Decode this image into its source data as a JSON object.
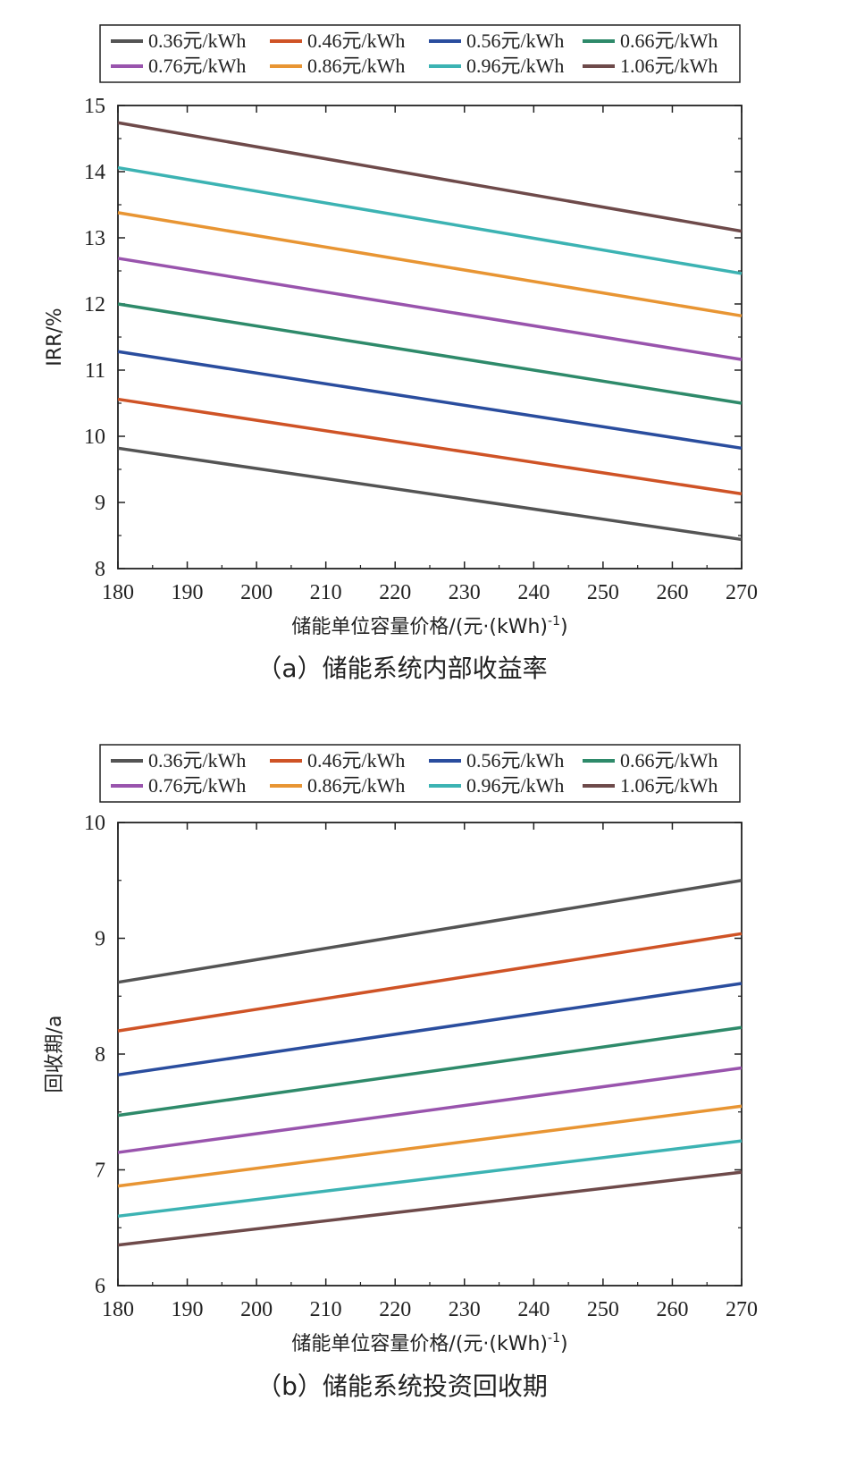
{
  "chart_data": [
    {
      "type": "line",
      "caption": "（a）储能系统内部收益率",
      "xlabel": "储能单位容量价格/(元·(kWh)",
      "xlabel_sup": "-1",
      "xlabel_close": ")",
      "ylabel": "IRR/%",
      "xlim": [
        180,
        270
      ],
      "ylim": [
        8,
        15
      ],
      "xticks": [
        180,
        190,
        200,
        210,
        220,
        230,
        240,
        250,
        260,
        270
      ],
      "yticks": [
        8,
        9,
        10,
        11,
        12,
        13,
        14,
        15
      ],
      "legend": "top",
      "grid": false,
      "x": [
        180,
        270
      ],
      "series": [
        {
          "name": "0.36元/kWh",
          "color": "#545454",
          "values": [
            9.82,
            8.44
          ]
        },
        {
          "name": "0.46元/kWh",
          "color": "#cf5326",
          "values": [
            10.56,
            9.13
          ]
        },
        {
          "name": "0.56元/kWh",
          "color": "#2a4d9e",
          "values": [
            11.28,
            9.82
          ]
        },
        {
          "name": "0.66元/kWh",
          "color": "#2e8a6a",
          "values": [
            12.0,
            10.5
          ]
        },
        {
          "name": "0.76元/kWh",
          "color": "#9954ad",
          "values": [
            12.69,
            11.16
          ]
        },
        {
          "name": "0.86元/kWh",
          "color": "#e89533",
          "values": [
            13.38,
            11.82
          ]
        },
        {
          "name": "0.96元/kWh",
          "color": "#3cb3b3",
          "values": [
            14.06,
            12.46
          ]
        },
        {
          "name": "1.06元/kWh",
          "color": "#6e4a4a",
          "values": [
            14.74,
            13.1
          ]
        }
      ]
    },
    {
      "type": "line",
      "caption": "（b）储能系统投资回收期",
      "xlabel": "储能单位容量价格/(元·(kWh)",
      "xlabel_sup": "-1",
      "xlabel_close": ")",
      "ylabel": "回收期/a",
      "xlim": [
        180,
        270
      ],
      "ylim": [
        6,
        10
      ],
      "xticks": [
        180,
        190,
        200,
        210,
        220,
        230,
        240,
        250,
        260,
        270
      ],
      "yticks": [
        6,
        7,
        8,
        9,
        10
      ],
      "legend": "top",
      "grid": false,
      "x": [
        180,
        270
      ],
      "series": [
        {
          "name": "0.36元/kWh",
          "color": "#545454",
          "values": [
            8.62,
            9.5
          ]
        },
        {
          "name": "0.46元/kWh",
          "color": "#cf5326",
          "values": [
            8.2,
            9.04
          ]
        },
        {
          "name": "0.56元/kWh",
          "color": "#2a4d9e",
          "values": [
            7.82,
            8.61
          ]
        },
        {
          "name": "0.66元/kWh",
          "color": "#2e8a6a",
          "values": [
            7.47,
            8.23
          ]
        },
        {
          "name": "0.76元/kWh",
          "color": "#9954ad",
          "values": [
            7.15,
            7.88
          ]
        },
        {
          "name": "0.86元/kWh",
          "color": "#e89533",
          "values": [
            6.86,
            7.55
          ]
        },
        {
          "name": "0.96元/kWh",
          "color": "#3cb3b3",
          "values": [
            6.6,
            7.25
          ]
        },
        {
          "name": "1.06元/kWh",
          "color": "#6e4a4a",
          "values": [
            6.35,
            6.98
          ]
        }
      ]
    }
  ]
}
